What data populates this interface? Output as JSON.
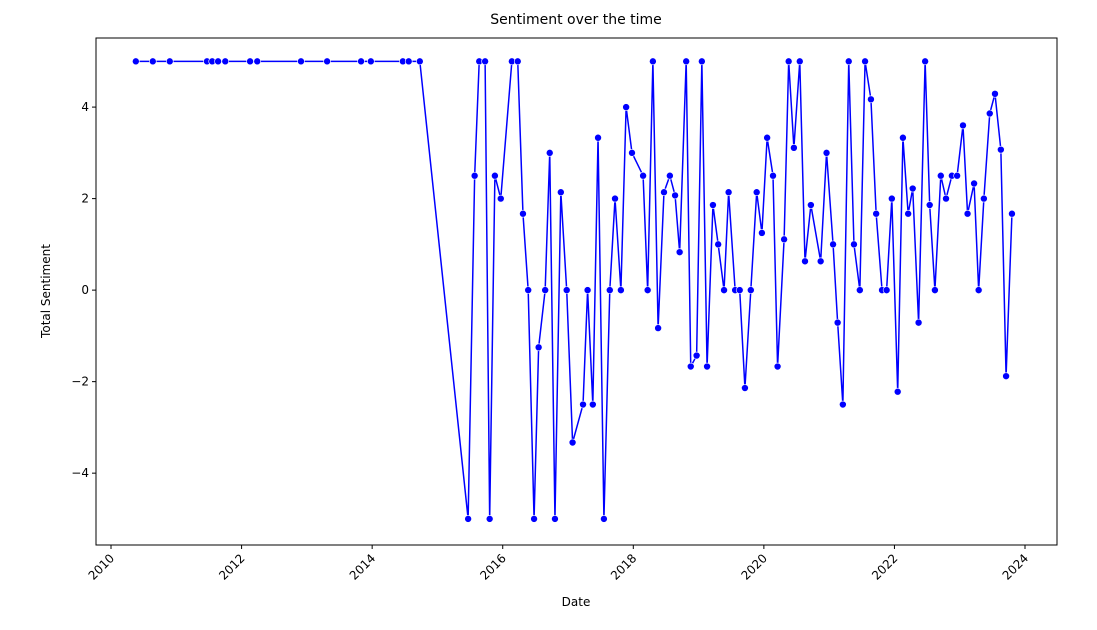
{
  "chart_data": {
    "type": "line",
    "title": "Sentiment over the time",
    "x_label": "Date",
    "y_label": "Total Sentiment",
    "x": [
      2010.38,
      2010.64,
      2010.9,
      2011.47,
      2011.55,
      2011.64,
      2011.75,
      2012.13,
      2012.24,
      2012.91,
      2013.31,
      2013.83,
      2013.98,
      2014.47,
      2014.56,
      2014.73,
      2015.47,
      2015.57,
      2015.64,
      2015.73,
      2015.8,
      2015.88,
      2015.97,
      2016.14,
      2016.23,
      2016.31,
      2016.39,
      2016.48,
      2016.55,
      2016.65,
      2016.72,
      2016.8,
      2016.89,
      2016.98,
      2017.07,
      2017.23,
      2017.3,
      2017.38,
      2017.46,
      2017.55,
      2017.64,
      2017.72,
      2017.81,
      2017.89,
      2017.98,
      2018.15,
      2018.22,
      2018.3,
      2018.38,
      2018.47,
      2018.56,
      2018.64,
      2018.71,
      2018.81,
      2018.88,
      2018.97,
      2019.05,
      2019.13,
      2019.22,
      2019.3,
      2019.39,
      2019.46,
      2019.56,
      2019.63,
      2019.71,
      2019.8,
      2019.89,
      2019.97,
      2020.05,
      2020.14,
      2020.21,
      2020.31,
      2020.38,
      2020.46,
      2020.55,
      2020.63,
      2020.72,
      2020.87,
      2020.96,
      2021.06,
      2021.13,
      2021.21,
      2021.3,
      2021.38,
      2021.47,
      2021.55,
      2021.64,
      2021.72,
      2021.81,
      2021.88,
      2021.96,
      2022.05,
      2022.13,
      2022.21,
      2022.28,
      2022.37,
      2022.47,
      2022.54,
      2022.62,
      2022.71,
      2022.79,
      2022.88,
      2022.96,
      2023.05,
      2023.12,
      2023.22,
      2023.29,
      2023.37,
      2023.46,
      2023.54,
      2023.63,
      2023.71,
      2023.8
    ],
    "series": [
      {
        "name": "Total Sentiment",
        "color": "#0000ff",
        "values": [
          5,
          5,
          5,
          5,
          5,
          5,
          5,
          5,
          5,
          5,
          5,
          5,
          5,
          5,
          5,
          5,
          -5,
          2.5,
          5,
          5,
          -5,
          2.5,
          2,
          5,
          5,
          1.67,
          0,
          -5,
          -1.25,
          0,
          3,
          -5,
          2.14,
          0,
          -3.33,
          -2.5,
          0,
          -2.5,
          3.33,
          -5,
          0,
          2,
          0,
          4,
          3,
          2.5,
          0,
          5,
          -0.83,
          2.14,
          2.5,
          2.07,
          0.83,
          5,
          -1.67,
          -1.43,
          5,
          -1.67,
          1.86,
          1,
          0,
          2.14,
          0,
          0,
          -2.14,
          0,
          2.14,
          1.25,
          3.33,
          2.5,
          -1.67,
          1.11,
          5,
          3.11,
          5,
          0.63,
          1.86,
          0.63,
          3,
          1,
          -0.71,
          -2.5,
          5,
          1,
          0,
          5,
          4.17,
          1.67,
          0,
          0,
          2,
          -2.22,
          3.33,
          1.67,
          2.22,
          -0.71,
          5,
          1.86,
          0,
          2.5,
          2,
          2.5,
          2.5,
          3.6,
          1.67,
          2.33,
          0,
          2,
          3.86,
          4.29,
          3.07,
          -1.88,
          1.67
        ]
      }
    ],
    "xlim": [
      2009.77,
      2024.49
    ],
    "xticks": [
      2010,
      2012,
      2014,
      2016,
      2018,
      2020,
      2022,
      2024
    ],
    "ylim": [
      -5.57,
      5.51
    ],
    "yticks": [
      {
        "value": -4,
        "label": "−4"
      },
      {
        "value": -2,
        "label": "−2"
      },
      0,
      2,
      4
    ]
  }
}
